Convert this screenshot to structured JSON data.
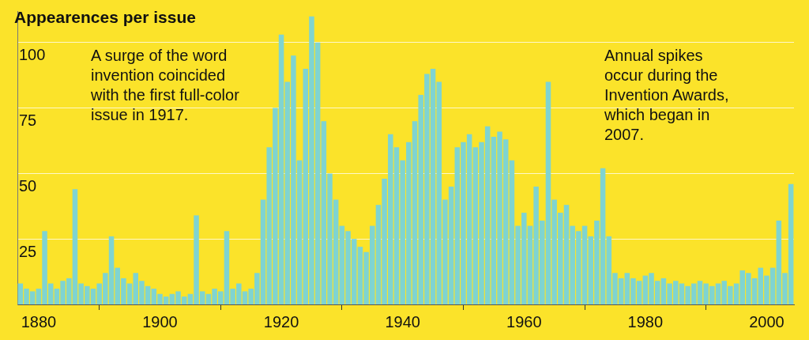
{
  "chart_data": {
    "type": "bar",
    "title": "Appearences per issue",
    "annotations": [
      "A surge of the word invention coincided with the first full-color issue in 1917.",
      "Annual spikes occur during the Invention Awards, which began in 2007."
    ],
    "x": [
      1877,
      1878,
      1879,
      1880,
      1881,
      1882,
      1883,
      1884,
      1885,
      1886,
      1887,
      1888,
      1889,
      1890,
      1891,
      1892,
      1893,
      1894,
      1895,
      1896,
      1897,
      1898,
      1899,
      1900,
      1901,
      1902,
      1903,
      1904,
      1905,
      1906,
      1907,
      1908,
      1909,
      1910,
      1911,
      1912,
      1913,
      1914,
      1915,
      1916,
      1917,
      1918,
      1919,
      1920,
      1921,
      1922,
      1923,
      1924,
      1925,
      1926,
      1927,
      1928,
      1929,
      1930,
      1931,
      1932,
      1933,
      1934,
      1935,
      1936,
      1937,
      1938,
      1939,
      1940,
      1941,
      1942,
      1943,
      1944,
      1945,
      1946,
      1947,
      1948,
      1949,
      1950,
      1951,
      1952,
      1953,
      1954,
      1955,
      1956,
      1957,
      1958,
      1959,
      1960,
      1961,
      1962,
      1963,
      1964,
      1965,
      1966,
      1967,
      1968,
      1969,
      1970,
      1971,
      1972,
      1973,
      1974,
      1975,
      1976,
      1977,
      1978,
      1979,
      1980,
      1981,
      1982,
      1983,
      1984,
      1985,
      1986,
      1987,
      1988,
      1989,
      1990,
      1991,
      1992,
      1993,
      1994,
      1995,
      1996,
      1997,
      1998,
      1999,
      2000,
      2001,
      2002,
      2003,
      2004
    ],
    "values": [
      8,
      6,
      5,
      6,
      28,
      8,
      6,
      9,
      10,
      44,
      8,
      7,
      6,
      8,
      12,
      26,
      14,
      10,
      8,
      12,
      9,
      7,
      6,
      4,
      3,
      4,
      5,
      3,
      4,
      34,
      5,
      4,
      6,
      5,
      28,
      6,
      8,
      5,
      6,
      12,
      40,
      60,
      75,
      103,
      85,
      95,
      55,
      90,
      110,
      100,
      70,
      50,
      40,
      30,
      28,
      25,
      22,
      20,
      30,
      38,
      48,
      65,
      60,
      55,
      62,
      70,
      80,
      88,
      90,
      85,
      40,
      45,
      60,
      62,
      65,
      60,
      62,
      68,
      64,
      66,
      63,
      55,
      30,
      35,
      30,
      45,
      32,
      85,
      40,
      35,
      38,
      30,
      28,
      30,
      26,
      32,
      52,
      26,
      12,
      10,
      12,
      10,
      9,
      11,
      12,
      9,
      10,
      8,
      9,
      8,
      7,
      8,
      9,
      8,
      7,
      8,
      9,
      7,
      8,
      13,
      12,
      10,
      14,
      11,
      14,
      32,
      12,
      46
    ],
    "color": "#7fd4d1",
    "xlim": [
      1876.5,
      2004.5
    ],
    "xticks": [
      1880,
      1900,
      1920,
      1940,
      1960,
      1980,
      2000
    ],
    "ylim": [
      0,
      112
    ],
    "yticks": [
      25,
      50,
      75,
      100
    ],
    "grid": true
  }
}
